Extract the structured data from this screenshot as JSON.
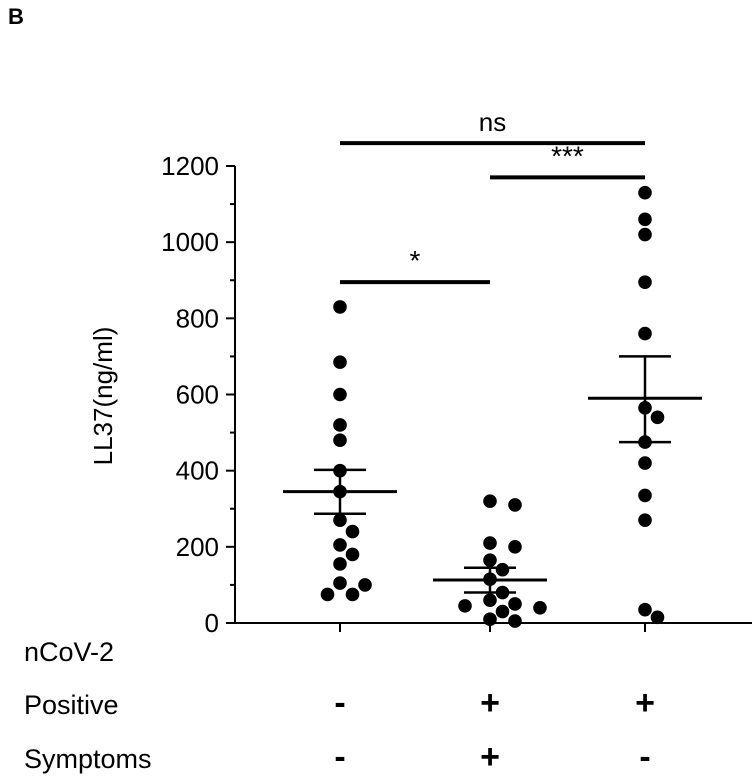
{
  "panel_label": "B",
  "chart_data": {
    "type": "scatter",
    "title": "",
    "xlabel": "",
    "ylabel": "LL37(ng/ml)",
    "ylim": [
      0,
      1200
    ],
    "yticks": [
      0,
      200,
      400,
      600,
      800,
      1000,
      1200
    ],
    "grid": false,
    "groups": [
      {
        "id": "g1",
        "values": [
          830,
          685,
          600,
          520,
          480,
          400,
          345,
          270,
          240,
          205,
          180,
          155,
          105,
          100,
          75,
          75
        ],
        "mean": 345,
        "sem_low": 287,
        "sem_high": 402
      },
      {
        "id": "g2",
        "values": [
          320,
          310,
          210,
          200,
          165,
          140,
          115,
          80,
          60,
          50,
          45,
          40,
          30,
          10,
          5
        ],
        "mean": 113,
        "sem_low": 80,
        "sem_high": 145
      },
      {
        "id": "g3",
        "values": [
          1130,
          1060,
          1020,
          895,
          760,
          565,
          540,
          475,
          420,
          335,
          270,
          35,
          15
        ],
        "mean": 590,
        "sem_low": 475,
        "sem_high": 700
      }
    ],
    "significance": [
      {
        "from": 0,
        "to": 1,
        "y": 895,
        "label": "*"
      },
      {
        "from": 1,
        "to": 2,
        "y": 1170,
        "label": "***"
      },
      {
        "from": 0,
        "to": 2,
        "y": 1260,
        "label": "ns"
      }
    ]
  },
  "conditions": {
    "rows": [
      {
        "label": "nCoV-2",
        "signs": [
          "",
          "",
          ""
        ]
      },
      {
        "label": "Positive",
        "signs": [
          "-",
          "+",
          "+"
        ]
      },
      {
        "label": "Symptoms",
        "signs": [
          "-",
          "+",
          "-"
        ]
      }
    ]
  }
}
